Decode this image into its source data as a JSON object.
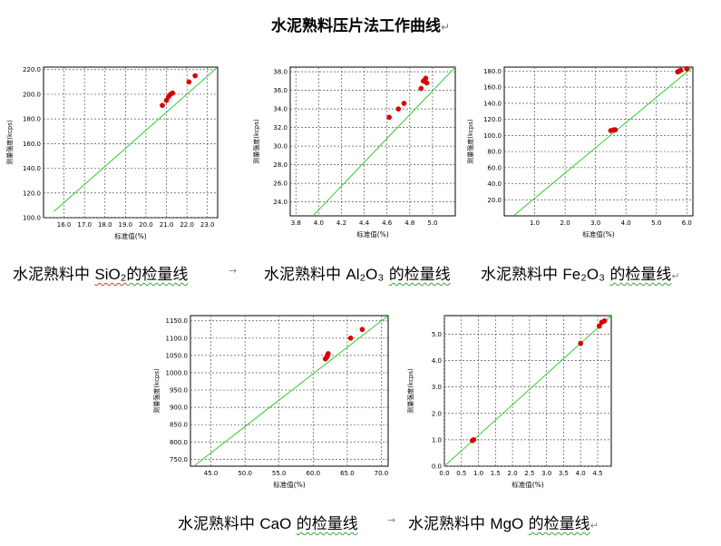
{
  "document": {
    "title": "水泥熟料压片法工作曲线",
    "return_mark": "↵",
    "arrow_mark": "→"
  },
  "captions": [
    {
      "prefix": "水泥熟料中",
      "formula": "SiO₂",
      "suffix": "的检量线"
    },
    {
      "prefix": "水泥熟料中",
      "formula": "Al₂O₃",
      "suffix": "的检量线"
    },
    {
      "prefix": "水泥熟料中",
      "formula": "Fe₂O₃",
      "suffix": "的检量线"
    },
    {
      "prefix": "水泥熟料中",
      "formula": "CaO",
      "suffix": "的检量线"
    },
    {
      "prefix": "水泥熟料中",
      "formula": "MgO",
      "suffix": "的检量线"
    }
  ],
  "chart_data": [
    {
      "type": "scatter",
      "xlabel": "标准值(%)",
      "ylabel": "测量强度(kcps)",
      "xlim": [
        15.0,
        23.5
      ],
      "ylim": [
        100.0,
        222.0
      ],
      "xticks": [
        "16.0",
        "17.0",
        "18.0",
        "19.0",
        "20.0",
        "21.0",
        "22.0",
        "23.0"
      ],
      "yticks": [
        "100.0",
        "120.0",
        "140.0",
        "160.0",
        "180.0",
        "200.0",
        "220.0"
      ],
      "grid": true,
      "fit_line": {
        "x": [
          15.5,
          23.5
        ],
        "y": [
          105.0,
          222.0
        ]
      },
      "points": [
        [
          20.8,
          191
        ],
        [
          21.0,
          195
        ],
        [
          21.1,
          198
        ],
        [
          21.2,
          200
        ],
        [
          21.3,
          201
        ],
        [
          22.1,
          210
        ],
        [
          22.4,
          215
        ]
      ]
    },
    {
      "type": "scatter",
      "xlabel": "标准值(%)",
      "ylabel": "测量强度(kcps)",
      "xlim": [
        3.75,
        5.2
      ],
      "ylim": [
        22.5,
        38.5
      ],
      "xticks": [
        "3.8",
        "4.0",
        "4.2",
        "4.4",
        "4.6",
        "4.8",
        "5.0"
      ],
      "yticks": [
        "24.0",
        "26.0",
        "28.0",
        "30.0",
        "32.0",
        "34.0",
        "36.0",
        "38.0"
      ],
      "grid": true,
      "fit_line": {
        "x": [
          3.95,
          5.2
        ],
        "y": [
          22.5,
          38.5
        ]
      },
      "points": [
        [
          4.62,
          33.1
        ],
        [
          4.7,
          34.0
        ],
        [
          4.75,
          34.6
        ],
        [
          4.9,
          36.2
        ],
        [
          4.92,
          37.0
        ],
        [
          4.94,
          37.3
        ],
        [
          4.95,
          36.8
        ]
      ]
    },
    {
      "type": "scatter",
      "xlabel": "标准值(%)",
      "ylabel": "测量强度(kcps)",
      "xlim": [
        0.0,
        6.2
      ],
      "ylim": [
        0.0,
        185.0
      ],
      "xticks": [
        "1.0",
        "2.0",
        "3.0",
        "4.0",
        "5.0",
        "6.0"
      ],
      "yticks": [
        "20.0",
        "40.0",
        "60.0",
        "80.0",
        "100.0",
        "120.0",
        "140.0",
        "160.0",
        "180.0"
      ],
      "grid": true,
      "fit_line": {
        "x": [
          0.3,
          6.2
        ],
        "y": [
          0.0,
          185.0
        ]
      },
      "points": [
        [
          3.5,
          106
        ],
        [
          3.6,
          107
        ],
        [
          3.65,
          107
        ],
        [
          5.7,
          179
        ],
        [
          5.75,
          180
        ],
        [
          5.8,
          181
        ],
        [
          6.0,
          183
        ]
      ]
    },
    {
      "type": "scatter",
      "xlabel": "标准值(%)",
      "ylabel": "测量强度(kcps)",
      "xlim": [
        42.0,
        71.0
      ],
      "ylim": [
        730.0,
        1165.0
      ],
      "xticks": [
        "45.0",
        "50.0",
        "55.0",
        "60.0",
        "65.0",
        "70.0"
      ],
      "yticks": [
        "750.0",
        "800.0",
        "850.0",
        "900.0",
        "950.0",
        "1000.0",
        "1050.0",
        "1100.0",
        "1150.0"
      ],
      "grid": true,
      "fit_line": {
        "x": [
          42.5,
          71.0
        ],
        "y": [
          730.0,
          1165.0
        ]
      },
      "points": [
        [
          61.8,
          1040
        ],
        [
          62.0,
          1045
        ],
        [
          62.1,
          1050
        ],
        [
          62.2,
          1055
        ],
        [
          65.5,
          1100
        ],
        [
          67.2,
          1125
        ]
      ]
    },
    {
      "type": "scatter",
      "xlabel": "标准值(%)",
      "ylabel": "测量强度(kcps)",
      "xlim": [
        0.0,
        4.9
      ],
      "ylim": [
        0.0,
        5.7
      ],
      "xticks": [
        "0.0",
        "0.5",
        "1.0",
        "1.5",
        "2.0",
        "2.5",
        "3.0",
        "3.5",
        "4.0",
        "4.5"
      ],
      "yticks": [
        "0.0",
        "1.0",
        "2.0",
        "3.0",
        "4.0",
        "5.0"
      ],
      "grid": true,
      "fit_line": {
        "x": [
          0.0,
          4.9
        ],
        "y": [
          0.0,
          5.7
        ]
      },
      "points": [
        [
          0.82,
          0.97
        ],
        [
          0.86,
          1.0
        ],
        [
          4.0,
          4.65
        ],
        [
          4.55,
          5.3
        ],
        [
          4.62,
          5.45
        ],
        [
          4.7,
          5.5
        ]
      ]
    }
  ]
}
